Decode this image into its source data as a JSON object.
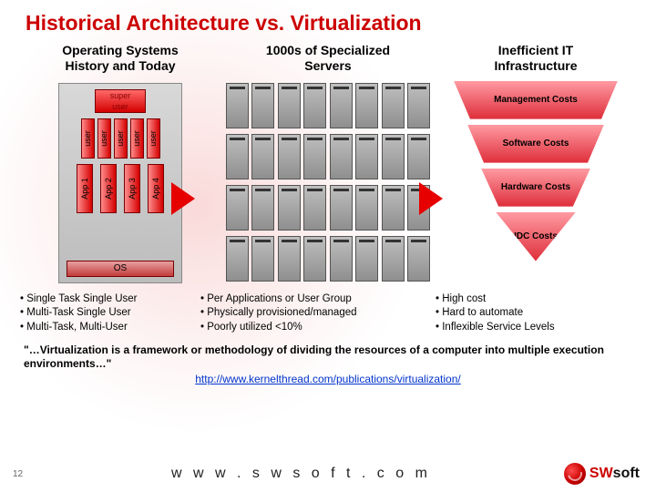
{
  "title": "Historical Architecture vs. Virtualization",
  "page_number": "12",
  "site_url": "w w w . s w s o f t . c o m",
  "logo": {
    "brand_prefix": "SW",
    "brand_suffix": "soft",
    "icon_name": "swirl-logo",
    "prefix_color": "#cc0000",
    "suffix_color": "#111111"
  },
  "columns": {
    "left": {
      "heading_l1": "Operating Systems",
      "heading_l2": "History and Today"
    },
    "center": {
      "heading_l1": "1000s of Specialized",
      "heading_l2": "Servers"
    },
    "right": {
      "heading_l1": "Inefficient IT",
      "heading_l2": "Infrastructure"
    }
  },
  "server_box": {
    "super_user_l1": "super",
    "super_user_l2": "user",
    "user_labels": [
      "user",
      "user",
      "user",
      "user",
      "user"
    ],
    "app_labels": [
      "App 1",
      "App 2",
      "App 3",
      "App 4"
    ],
    "os_label": "OS",
    "colors": {
      "box_bg_top": "#d8d8d8",
      "box_bg_bot": "#bcbcbc",
      "item_grad_from": "#ff8c8c",
      "item_grad_to": "#d40000",
      "border": "#7a0000"
    }
  },
  "farm": {
    "rows": 4,
    "racks_per_row": 8,
    "rack_color_top": "#bfbfbf",
    "rack_color_bot": "#8f8f8f"
  },
  "arrows": {
    "color": "#e60000"
  },
  "pyramid": {
    "tiers": [
      {
        "label": "Management Costs"
      },
      {
        "label": "Software Costs"
      },
      {
        "label": "Hardware Costs"
      },
      {
        "label": "IDC Costs"
      }
    ],
    "grad_from": "#ff9aa2",
    "grad_to": "#de2e3a"
  },
  "bullets": {
    "col1": [
      "Single Task Single User",
      "Multi-Task Single User",
      "Multi-Task, Multi-User"
    ],
    "col2": [
      "Per Applications or User Group",
      "Physically provisioned/managed",
      "Poorly utilized <10%"
    ],
    "col3": [
      "High cost",
      "Hard to automate",
      "Inflexible Service Levels"
    ]
  },
  "quote_text": "\"…Virtualization is a framework or methodology of dividing the resources of a computer into multiple execution environments…\"",
  "quote_link": "http://www.kernelthread.com/publications/virtualization/"
}
